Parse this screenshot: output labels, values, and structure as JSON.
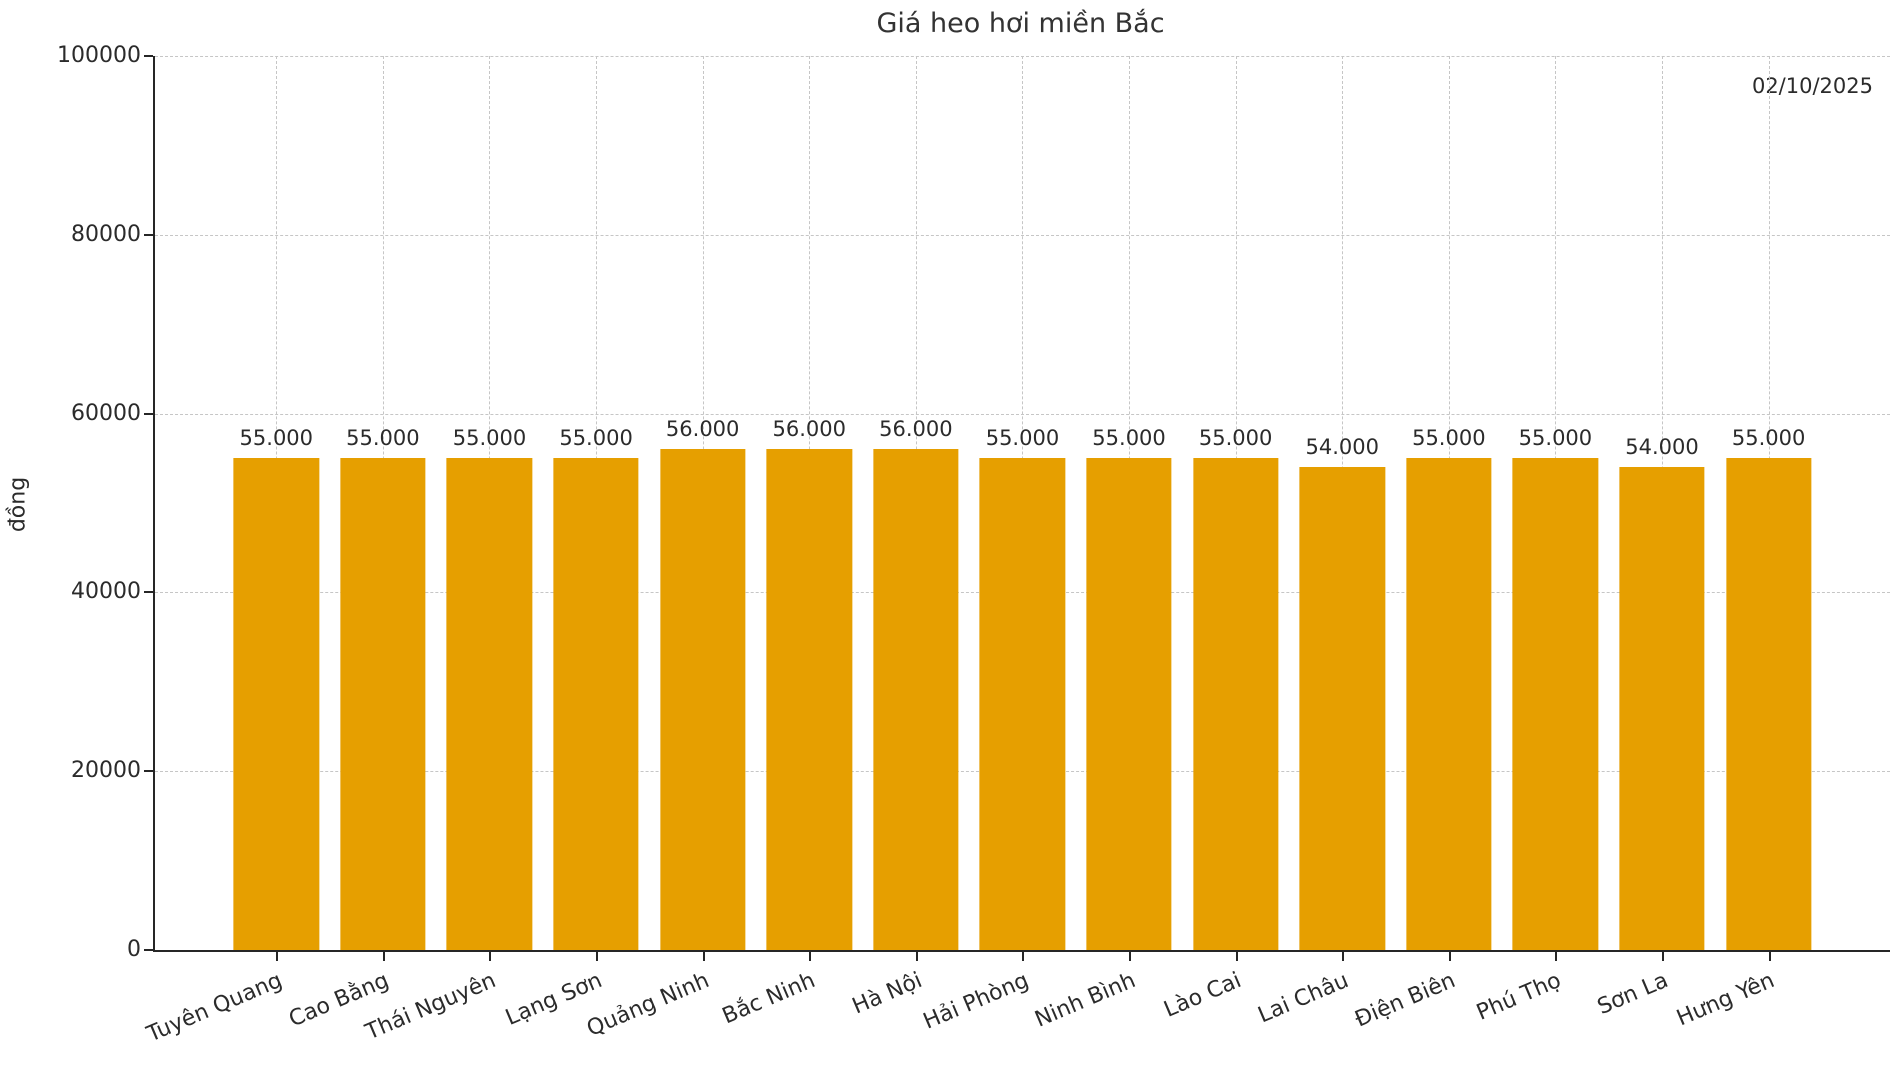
{
  "chart": {
    "title": "Giá heo hơi miền Bắc",
    "annotation_date": "02/10/2025",
    "ylabel": "đồng"
  },
  "chart_data": {
    "type": "bar",
    "title": "Giá heo hơi miền Bắc",
    "annotation": "02/10/2025",
    "xlabel": "",
    "ylabel": "đồng",
    "categories": [
      "Tuyên Quang",
      "Cao Bằng",
      "Thái Nguyên",
      "Lạng Sơn",
      "Quảng Ninh",
      "Bắc Ninh",
      "Hà Nội",
      "Hải Phòng",
      "Ninh Bình",
      "Lào Cai",
      "Lai Châu",
      "Điện Biên",
      "Phú Thọ",
      "Sơn La",
      "Hưng Yên"
    ],
    "values": [
      55000,
      55000,
      55000,
      55000,
      56000,
      56000,
      56000,
      55000,
      55000,
      55000,
      54000,
      55000,
      55000,
      54000,
      55000
    ],
    "bar_labels": [
      "55.000",
      "55.000",
      "55.000",
      "55.000",
      "56.000",
      "56.000",
      "56.000",
      "55.000",
      "55.000",
      "55.000",
      "54.000",
      "55.000",
      "55.000",
      "54.000",
      "55.000"
    ],
    "ylim": [
      0,
      100000
    ],
    "yticks": [
      0,
      20000,
      40000,
      60000,
      80000,
      100000
    ],
    "ytick_labels": [
      "0",
      "20000",
      "40000",
      "60000",
      "80000",
      "100000"
    ],
    "grid": true,
    "legend": false,
    "bar_color": "#E69F00",
    "grid_color": "#c6c6c6",
    "text_color": "#2b2b2b"
  }
}
